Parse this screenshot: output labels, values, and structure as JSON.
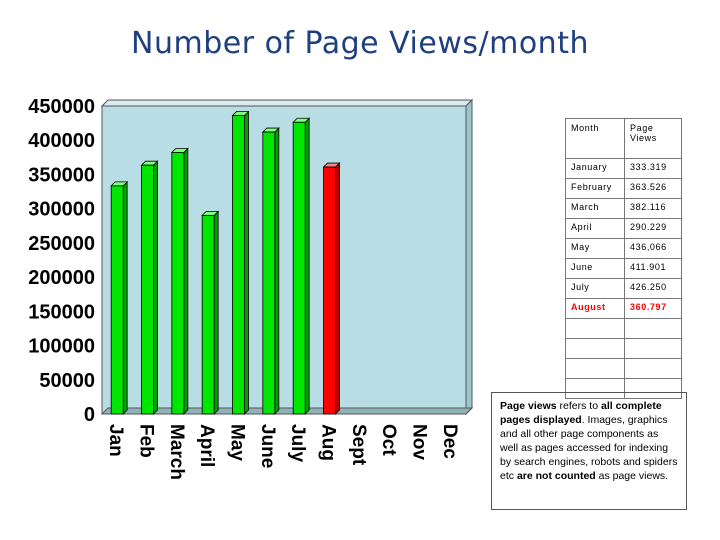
{
  "page_title": "Number of Page Views/month",
  "colors": {
    "plot_bg": "#b9dde4",
    "bar": "#00e600",
    "bar_highlight": "#ff0000",
    "title": "#1f3f7f"
  },
  "chart_data": {
    "type": "bar",
    "title": "Number of Page Views/month",
    "xlabel": "",
    "ylabel": "",
    "ylim": [
      0,
      450000
    ],
    "yticks": [
      0,
      50000,
      100000,
      150000,
      200000,
      250000,
      300000,
      350000,
      400000,
      450000
    ],
    "grid": false,
    "categories": [
      "Jan",
      "Feb",
      "March",
      "April",
      "May",
      "June",
      "July",
      "Aug",
      "Sept",
      "Oct",
      "Nov",
      "Dec"
    ],
    "values": [
      333319,
      363526,
      382116,
      290229,
      436066,
      411901,
      426250,
      360797,
      null,
      null,
      null,
      null
    ],
    "highlight_category": "Aug"
  },
  "table": {
    "headers": [
      "Month",
      "Page Views"
    ],
    "rows": [
      {
        "month": "January",
        "views": "333.319"
      },
      {
        "month": "February",
        "views": "363.526"
      },
      {
        "month": "March",
        "views": "382.116"
      },
      {
        "month": "April",
        "views": "290.229"
      },
      {
        "month": "May",
        "views": "436,066"
      },
      {
        "month": "June",
        "views": "411.901"
      },
      {
        "month": "July",
        "views": "426.250"
      },
      {
        "month": "August",
        "views": "360.797"
      }
    ],
    "highlight_row": 7,
    "empty_rows": 4
  },
  "note": {
    "parts": [
      {
        "text": "Page views",
        "bold": true
      },
      {
        "text": " refers to ",
        "bold": false
      },
      {
        "text": "all complete pages displayed",
        "bold": true
      },
      {
        "text": ". Images, graphics and all other page components as well as pages accessed for indexing by search engines, robots and spiders etc ",
        "bold": false
      },
      {
        "text": "are not counted",
        "bold": true
      },
      {
        "text": " as page views.",
        "bold": false
      }
    ]
  }
}
